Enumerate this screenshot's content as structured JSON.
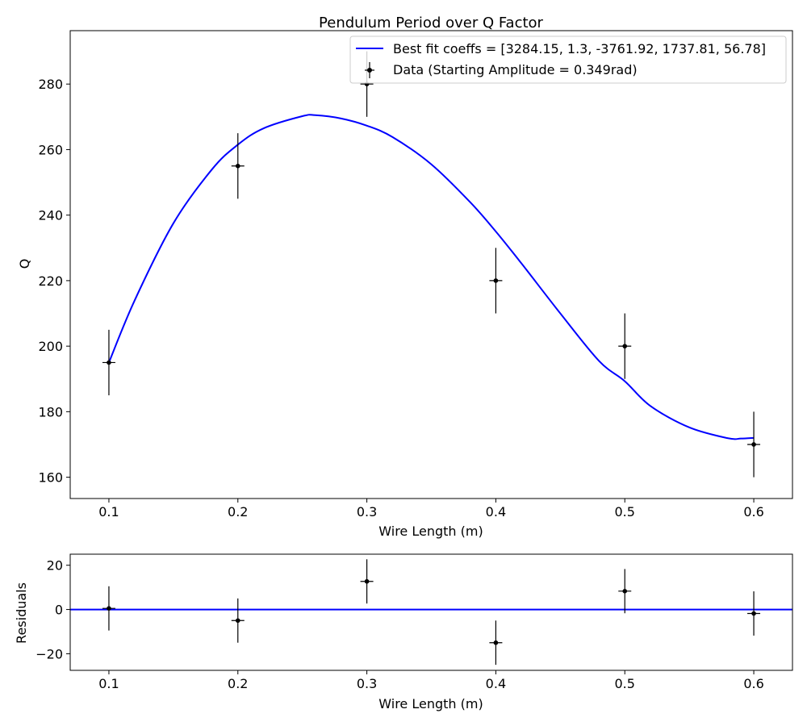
{
  "chart_data": [
    {
      "type": "scatter",
      "title": "Pendulum Period over Q Factor",
      "xlabel": "Wire Length (m)",
      "ylabel": "Q",
      "xlim": [
        0.07,
        0.63
      ],
      "ylim": [
        153.5,
        296.3
      ],
      "xticks": [
        0.1,
        0.2,
        0.3,
        0.4,
        0.5,
        0.6
      ],
      "yticks": [
        160,
        180,
        200,
        220,
        240,
        260,
        280
      ],
      "grid": false,
      "legend_position": "top-right",
      "series": [
        {
          "name": "Best fit coeffs = [3284.15, 1.3, -3761.92, 1737.81, 56.78]",
          "kind": "line",
          "color": "#0000ff",
          "x": [
            0.1,
            0.12,
            0.15,
            0.18,
            0.2,
            0.22,
            0.25,
            0.26,
            0.28,
            0.3,
            0.32,
            0.35,
            0.38,
            0.4,
            0.42,
            0.45,
            0.48,
            0.5,
            0.52,
            0.55,
            0.58,
            0.59,
            0.6
          ],
          "y": [
            195.0,
            214.0,
            237.5,
            254.0,
            261.5,
            266.5,
            270.2,
            270.5,
            269.5,
            267.3,
            263.8,
            255.5,
            244.0,
            235.0,
            225.2,
            210.0,
            195.5,
            189.3,
            181.7,
            175.2,
            171.9,
            171.8,
            172.0
          ]
        },
        {
          "name": "Data (Starting Amplitude = 0.349rad)",
          "kind": "errorbar",
          "color": "#000000",
          "x": [
            0.1,
            0.2,
            0.3,
            0.4,
            0.5,
            0.6
          ],
          "y": [
            195,
            255,
            280,
            220,
            200,
            170
          ],
          "yerr": [
            10,
            10,
            10,
            10,
            10,
            10
          ],
          "xerr": [
            0.005,
            0.005,
            0.005,
            0.005,
            0.005,
            0.005
          ]
        }
      ]
    },
    {
      "type": "scatter",
      "title": "",
      "xlabel": "Wire Length (m)",
      "ylabel": "Residuals",
      "xlim": [
        0.07,
        0.63
      ],
      "ylim": [
        -27.5,
        25.0
      ],
      "xticks": [
        0.1,
        0.2,
        0.3,
        0.4,
        0.5,
        0.6
      ],
      "yticks": [
        -20,
        0,
        20
      ],
      "ytick_labels": [
        "−20",
        "0",
        "20"
      ],
      "grid": false,
      "series": [
        {
          "kind": "hline",
          "color": "#0000ff",
          "y": 0
        },
        {
          "kind": "errorbar",
          "color": "#000000",
          "x": [
            0.1,
            0.2,
            0.3,
            0.4,
            0.5,
            0.6
          ],
          "y": [
            0.5,
            -5,
            12.7,
            -15,
            8.3,
            -1.8
          ],
          "yerr": [
            10,
            10,
            10,
            10,
            10,
            10
          ],
          "xerr": [
            0.005,
            0.005,
            0.005,
            0.005,
            0.005,
            0.005
          ]
        }
      ]
    }
  ]
}
